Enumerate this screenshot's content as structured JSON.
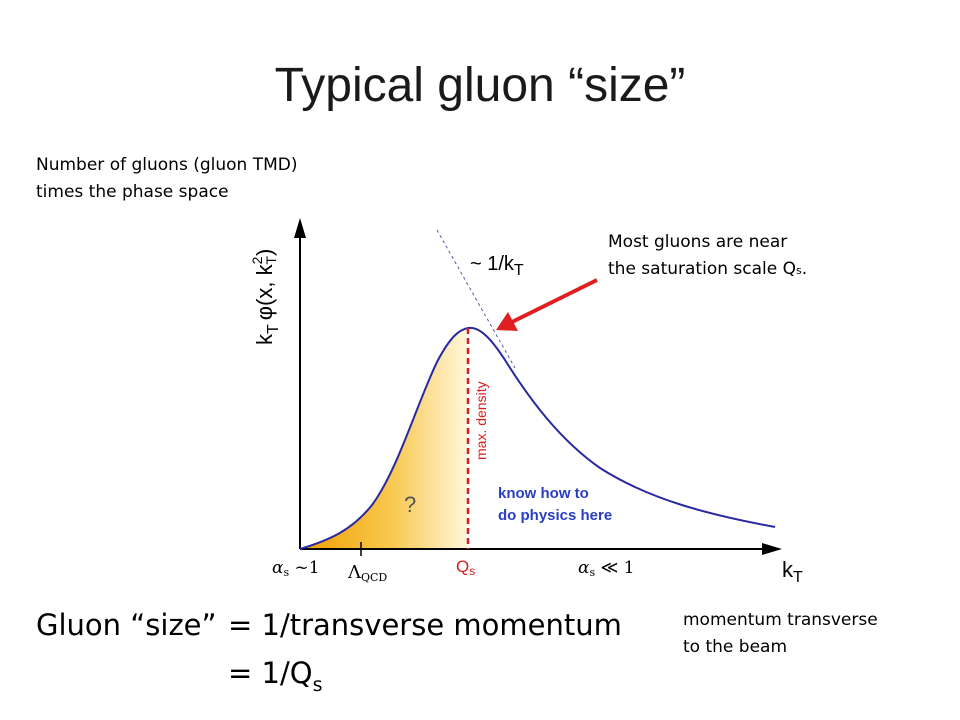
{
  "slide": {
    "title": "Typical gluon “size”"
  },
  "notes": {
    "yaxis_desc_line1": "Number of gluons (gluon TMD)",
    "yaxis_desc_line2": "times the phase space",
    "callout_line1": "Most gluons are near",
    "callout_line2": "the saturation scale Q",
    "callout_sub": "s",
    "callout_end": ".",
    "xaxis_desc_line1": "momentum transverse",
    "xaxis_desc_line2": "to the beam"
  },
  "plot": {
    "ylabel": "k",
    "ylabel_sub": "T",
    "ylabel_rest": "φ(x, k",
    "ylabel_sup": "2",
    "ylabel_sub2": "T",
    "ylabel_close": ")",
    "xlabel": "k",
    "xlabel_sub": "T",
    "asymptote_label": "~ 1/k",
    "asymptote_sub": "T",
    "vline_label": "max. density",
    "question_mark": "?",
    "know_line1": "know how to",
    "know_line2": "do physics here",
    "tick_alpha1": "α",
    "tick_alpha1_sub": "s",
    "tick_alpha1_rest": " ~1",
    "tick_lambda": "Λ",
    "tick_lambda_sub": "QCD",
    "tick_qs": "Q",
    "tick_qs_sub": "s",
    "tick_alpha2": "α",
    "tick_alpha2_sub": "s",
    "tick_alpha2_rest": " ≪ 1"
  },
  "equation": {
    "line1_left": "Gluon “size”",
    "line1_right": "= 1/transverse momentum",
    "line2": "= 1/Q",
    "line2_sub": "s"
  },
  "colors": {
    "curve": "#2a2aa0",
    "dashed_red": "#d42020",
    "arrow_red": "#e02020",
    "fill_dark": "#f2a000",
    "fill_light": "#fff7dc",
    "blue_text": "#2a3fbf"
  }
}
